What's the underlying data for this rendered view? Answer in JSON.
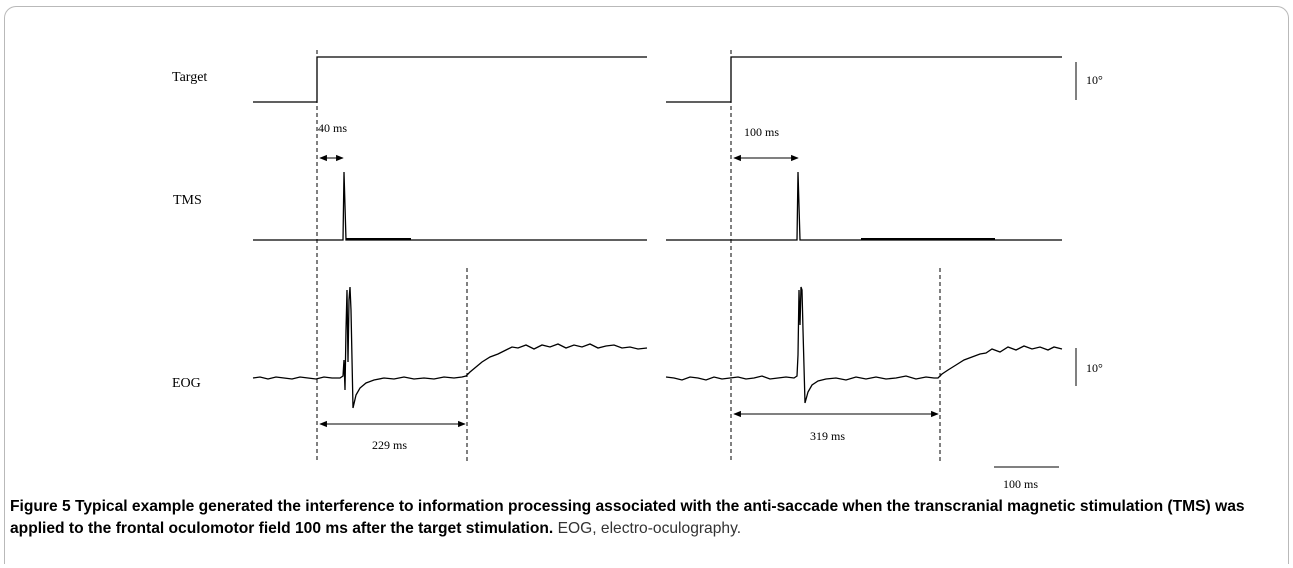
{
  "figure": {
    "row_labels": {
      "target": "Target",
      "tms": "TMS",
      "eog": "EOG"
    },
    "scale": {
      "target_deg": "10°",
      "eog_deg": "10°",
      "time": "100 ms"
    },
    "left_panel": {
      "tms_delay": "40 ms",
      "latency": "229 ms"
    },
    "right_panel": {
      "tms_delay": "100 ms",
      "latency": "319 ms"
    }
  },
  "caption": {
    "number": "Figure 5",
    "title": "Typical example generated the interference to information processing associated with the anti-saccade when the transcranial magnetic stimulation (TMS) was applied to the frontal oculomotor field 100 ms after the target stimulation.",
    "rest": "EOG, electro-oculography."
  }
}
